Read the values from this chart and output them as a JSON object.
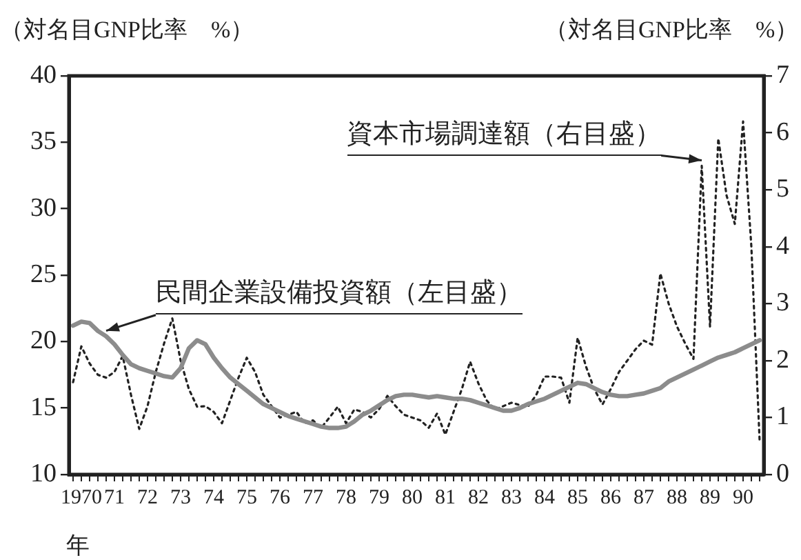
{
  "chart_data": {
    "type": "line",
    "ylabel": "（対名目GNP比率　%）",
    "y2label": "（対名目GNP比率　%）",
    "xlabel": "年",
    "categories": [
      null,
      "1970",
      null,
      null,
      null,
      "71",
      null,
      null,
      null,
      "72",
      null,
      null,
      null,
      "73",
      null,
      null,
      null,
      "74",
      null,
      null,
      null,
      "75",
      null,
      null,
      null,
      "76",
      null,
      null,
      null,
      "77",
      null,
      null,
      null,
      "78",
      null,
      null,
      null,
      "79",
      null,
      null,
      null,
      "80",
      null,
      null,
      null,
      "81",
      null,
      null,
      null,
      "82",
      null,
      null,
      null,
      "83",
      null,
      null,
      null,
      "84",
      null,
      null,
      null,
      "85",
      null,
      null,
      null,
      "86",
      null,
      null,
      null,
      "87",
      null,
      null,
      null,
      "88",
      null,
      null,
      null,
      "89",
      null,
      null,
      null,
      "90",
      null,
      null
    ],
    "ylim": [
      10,
      40
    ],
    "yticks": [
      10,
      15,
      20,
      25,
      30,
      35,
      40
    ],
    "y2lim": [
      0,
      7
    ],
    "y2ticks": [
      0,
      1,
      2,
      3,
      4,
      5,
      6,
      7
    ],
    "grid": false,
    "legend": false,
    "marker": "none",
    "series": [
      {
        "name": "民間企業設備投資額（左目盛）",
        "color": "#8c8c8c",
        "line_style": "solid",
        "axis": "y",
        "values": [
          21.2,
          21.5,
          21.4,
          20.8,
          20.4,
          19.8,
          19.0,
          18.3,
          18.0,
          17.8,
          17.6,
          17.4,
          17.3,
          18.0,
          19.5,
          20.1,
          19.8,
          18.8,
          18.0,
          17.3,
          16.8,
          16.3,
          15.8,
          15.3,
          15.0,
          14.7,
          14.4,
          14.2,
          14.0,
          13.8,
          13.6,
          13.5,
          13.5,
          13.6,
          14.0,
          14.5,
          14.8,
          15.2,
          15.6,
          15.9,
          16.0,
          16.0,
          15.9,
          15.8,
          15.9,
          15.8,
          15.7,
          15.7,
          15.6,
          15.4,
          15.2,
          15.0,
          14.8,
          14.8,
          15.0,
          15.3,
          15.5,
          15.7,
          16.0,
          16.3,
          16.6,
          16.9,
          16.8,
          16.5,
          16.2,
          16.0,
          15.9,
          15.9,
          16.0,
          16.1,
          16.3,
          16.5,
          17.0,
          17.3,
          17.6,
          17.9,
          18.2,
          18.5,
          18.8,
          19.0,
          19.2,
          19.5,
          19.8,
          20.1
        ]
      },
      {
        "name": "資本市場調達額（右目盛）",
        "color": "#222222",
        "line_style": "dotted",
        "axis": "y2",
        "values": [
          1.62,
          2.25,
          1.95,
          1.75,
          1.7,
          1.8,
          2.08,
          1.4,
          0.8,
          1.2,
          1.8,
          2.3,
          2.74,
          2.0,
          1.5,
          1.19,
          1.2,
          1.1,
          0.9,
          1.3,
          1.7,
          2.05,
          1.8,
          1.4,
          1.2,
          1.0,
          1.05,
          1.1,
          0.9,
          0.95,
          0.82,
          1.0,
          1.19,
          0.9,
          1.14,
          1.1,
          1.0,
          1.15,
          1.38,
          1.2,
          1.05,
          1.0,
          0.95,
          0.82,
          1.07,
          0.7,
          1.1,
          1.5,
          1.98,
          1.6,
          1.3,
          1.14,
          1.2,
          1.26,
          1.22,
          1.19,
          1.4,
          1.72,
          1.72,
          1.7,
          1.26,
          2.4,
          1.9,
          1.5,
          1.23,
          1.5,
          1.8,
          2.0,
          2.2,
          2.35,
          2.28,
          3.53,
          3.0,
          2.6,
          2.3,
          2.03,
          5.42,
          2.6,
          5.9,
          4.9,
          4.4,
          6.2,
          4.0,
          0.58
        ]
      }
    ]
  }
}
